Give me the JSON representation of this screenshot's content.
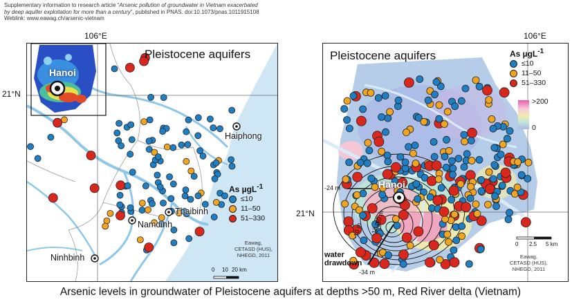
{
  "header": {
    "line1_a": "Supplementary information to research article “",
    "line1_b": "Arsenic pollution of groundwater in Vietnam exacerbated",
    "line2_a": "by deep aquifer exploitation for more than a century",
    "line2_b": "”, published in PNAS. doi:10.1073/pnas.1011915108",
    "line3": "Weblink: www.eawag.ch/arsenic-vietnam"
  },
  "left_map": {
    "title": "Pleistocene aquifers",
    "lon_tick": "106°E",
    "lat_tick": "21°N",
    "cities": {
      "hanoi": "Hanoi",
      "haiphong": "Haiphong",
      "thaibinh": "Thaibinh",
      "namdinh": "Namdinh",
      "ninhbinh": "Ninhbinh"
    },
    "legend": {
      "title": "As µgL",
      "title_sup": "-1",
      "items": [
        {
          "label": "≤10",
          "color": "#1f7fc4"
        },
        {
          "label": "11–50",
          "color": "#f2a520"
        },
        {
          "label": "51–330",
          "color": "#d9271e"
        }
      ]
    },
    "credit": [
      "Eawag,",
      "CETASD (HUS),",
      "NHEGD, 2011"
    ],
    "scale": [
      "0",
      "10",
      "20 km"
    ]
  },
  "right_map": {
    "title": "Pleistocene aquifers",
    "lon_tick": "106°E",
    "lat_tick": "21°N",
    "city": "Hanoi",
    "legend": {
      "title": "As µgL",
      "title_sup": "-1",
      "items": [
        {
          "label": "≤10",
          "color": "#1f7fc4"
        },
        {
          "label": "11–50",
          "color": "#f2a520"
        },
        {
          "label": "51–330",
          "color": "#d9271e"
        }
      ],
      "colorbar_max": ">200",
      "colorbar_min": "0"
    },
    "contours": [
      "-24 m",
      "-10 m",
      "-34 m",
      "-12 m",
      "-10 m"
    ],
    "drawdown_label": [
      "water",
      "drawdown"
    ],
    "scale": [
      "0",
      "2.5",
      "5 km"
    ],
    "credit": [
      "Eawag,",
      "CETASD (HUS),",
      "NHEGD, 2011"
    ]
  },
  "caption": "Arsenic levels in groundwater of Pleistocene aquifers at depths >50 m, Red River delta (Vietnam)",
  "colors": {
    "low": "#1f7fc4",
    "mid": "#f2a520",
    "high": "#d9271e",
    "water": "#cfe7f5",
    "river": "#8ec7e8"
  }
}
